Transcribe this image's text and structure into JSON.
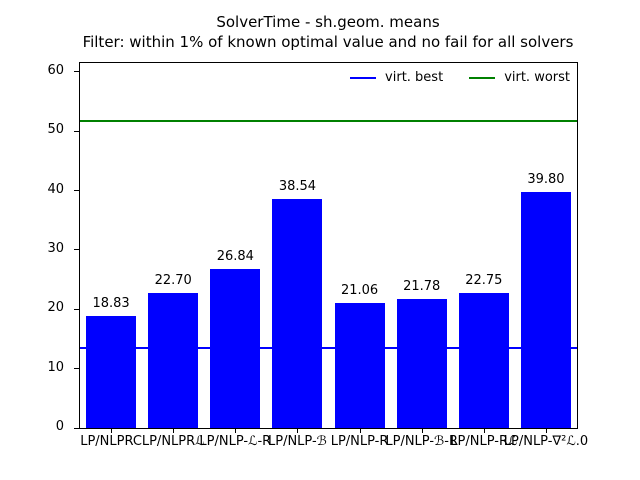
{
  "title": "SolverTime - sh.geom. means",
  "subtitle": "Filter: within 1% of known optimal value and no fail for all solvers",
  "legend": {
    "entries": [
      {
        "label": "virt. best",
        "color": "#0000ff"
      },
      {
        "label": "virt. worst",
        "color": "#008000"
      }
    ]
  },
  "colors": {
    "bar": "#0000ff",
    "virt_best_line": "#0000ff",
    "virt_worst_line": "#008000",
    "axis": "#000000",
    "background": "#ffffff"
  },
  "chart_data": {
    "type": "bar",
    "title": "SolverTime - sh.geom. means",
    "subtitle": "Filter: within 1% of known optimal value and no fail for all solvers",
    "categories": [
      "LP/NLPRC",
      "LP/NLPRℒ",
      "LP/NLP-ℒ-R",
      "LP/NLP-ℬ",
      "LP/NLP-R",
      "LP/NLP-ℬ-R",
      "LP/NLP-Rℒ",
      "LP/NLP-∇²ℒ.0"
    ],
    "values": [
      18.83,
      22.7,
      26.84,
      38.54,
      21.06,
      21.78,
      22.75,
      39.8
    ],
    "bar_labels": [
      "18.83",
      "22.70",
      "26.84",
      "38.54",
      "21.06",
      "21.78",
      "22.75",
      "39.80"
    ],
    "bar_color": "#0000ff",
    "xlabel": "",
    "ylabel": "",
    "yticks": [
      0,
      10,
      20,
      30,
      40,
      50,
      60
    ],
    "ylim": [
      0,
      61.5
    ],
    "grid": false,
    "legend_position": "upper right inside plot, horizontal, frameless",
    "reference_lines": [
      {
        "name": "virt. best",
        "value": 13.5,
        "color": "#0000ff"
      },
      {
        "name": "virt. worst",
        "value": 51.7,
        "color": "#008000"
      }
    ]
  }
}
